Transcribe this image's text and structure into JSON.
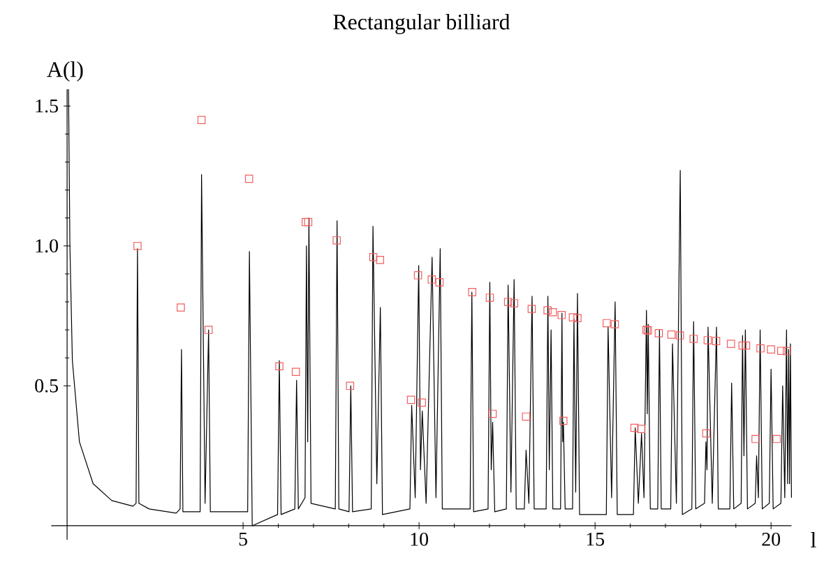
{
  "chart_data": {
    "type": "line",
    "title": "Rectangular billiard",
    "xlabel": "l",
    "ylabel": "A(l)",
    "xlim": [
      -0.45,
      20.58
    ],
    "ylim": [
      -0.05,
      1.56
    ],
    "xticks": [
      5,
      10,
      15,
      20
    ],
    "yticks": [
      {
        "value": 0.5,
        "label": "0.5"
      },
      {
        "value": 1.0,
        "label": "1.0"
      },
      {
        "value": 1.5,
        "label": "1.5"
      }
    ],
    "grid": false,
    "series": [
      {
        "color": "#000000",
        "marker": "none",
        "line_style": "solid",
        "x": [
          0.04,
          0.08,
          0.15,
          0.35,
          0.74,
          1.27,
          1.87,
          1.96,
          2.0,
          2.04,
          2.33,
          3.1,
          3.21,
          3.25,
          3.29,
          3.78,
          3.82,
          3.92,
          4.02,
          4.07,
          5.13,
          5.18,
          5.26,
          5.98,
          6.03,
          6.08,
          6.47,
          6.52,
          6.57,
          6.76,
          6.8,
          6.835,
          6.87,
          6.93,
          7.62,
          7.67,
          7.72,
          8.01,
          8.06,
          8.11,
          8.64,
          8.69,
          8.8,
          8.9,
          8.96,
          9.74,
          9.79,
          9.89,
          9.99,
          10.04,
          10.09,
          10.2,
          10.37,
          10.48,
          10.6,
          10.66,
          11.45,
          11.5,
          11.55,
          11.96,
          12.01,
          12.05,
          12.09,
          12.15,
          12.48,
          12.53,
          12.61,
          12.7,
          12.76,
          12.99,
          13.04,
          13.12,
          13.21,
          13.27,
          13.61,
          13.66,
          13.7,
          13.75,
          13.8,
          14.02,
          14.06,
          14.08,
          14.1,
          14.15,
          14.36,
          14.4,
          14.45,
          14.5,
          14.56,
          15.32,
          15.37,
          15.47,
          15.57,
          15.63,
          16.09,
          16.14,
          16.23,
          16.32,
          16.39,
          16.46,
          16.485,
          16.51,
          16.57,
          16.78,
          16.83,
          16.88,
          17.15,
          17.2,
          17.31,
          17.42,
          17.48,
          17.75,
          17.8,
          17.86,
          18.11,
          18.15,
          18.18,
          18.21,
          18.33,
          18.45,
          18.5,
          18.83,
          18.88,
          18.94,
          19.15,
          19.19,
          19.23,
          19.27,
          19.33,
          19.55,
          19.59,
          19.64,
          19.69,
          19.75,
          19.95,
          20.0,
          20.06,
          20.28,
          20.33,
          20.39,
          20.44,
          20.47,
          20.5,
          20.525,
          20.55,
          20.58
        ],
        "values": [
          1.56,
          1.0,
          0.59,
          0.3,
          0.15,
          0.09,
          0.07,
          0.08,
          0.99,
          0.08,
          0.06,
          0.045,
          0.06,
          0.63,
          0.05,
          0.05,
          1.255,
          0.08,
          0.7,
          0.05,
          0.05,
          0.98,
          0.0,
          0.04,
          0.59,
          0.04,
          0.06,
          0.52,
          0.06,
          0.1,
          1.0,
          0.3,
          1.1,
          0.08,
          0.06,
          1.09,
          0.06,
          0.05,
          0.5,
          0.05,
          0.06,
          1.07,
          0.15,
          0.78,
          0.04,
          0.06,
          0.43,
          0.1,
          0.93,
          0.2,
          0.41,
          0.08,
          0.96,
          0.1,
          0.99,
          0.06,
          0.06,
          0.835,
          0.05,
          0.06,
          0.87,
          0.2,
          0.37,
          0.05,
          0.06,
          0.86,
          0.12,
          0.88,
          0.06,
          0.06,
          0.27,
          0.08,
          0.82,
          0.06,
          0.06,
          0.82,
          0.2,
          0.7,
          0.06,
          0.06,
          0.76,
          0.3,
          0.37,
          0.06,
          0.06,
          0.74,
          0.12,
          0.83,
          0.04,
          0.04,
          0.71,
          0.1,
          0.8,
          0.04,
          0.04,
          0.35,
          0.08,
          0.33,
          0.1,
          0.77,
          0.4,
          0.72,
          0.06,
          0.06,
          0.7,
          0.06,
          0.06,
          0.65,
          0.08,
          1.27,
          0.04,
          0.06,
          0.73,
          0.06,
          0.08,
          0.3,
          0.2,
          0.71,
          0.08,
          0.71,
          0.06,
          0.06,
          0.51,
          0.06,
          0.08,
          0.68,
          0.25,
          0.7,
          0.06,
          0.08,
          0.25,
          0.1,
          0.7,
          0.06,
          0.08,
          0.56,
          0.06,
          0.08,
          0.5,
          0.1,
          0.7,
          0.15,
          0.63,
          0.15,
          0.65,
          0.1
        ]
      },
      {
        "type": "scatter",
        "color": "#f25f5f",
        "marker": "square",
        "x": [
          2.0,
          3.23,
          3.82,
          4.02,
          5.17,
          6.03,
          6.5,
          6.78,
          6.85,
          7.66,
          8.04,
          8.7,
          8.89,
          9.77,
          9.97,
          10.08,
          10.36,
          10.58,
          11.51,
          12.01,
          12.09,
          12.53,
          12.7,
          13.04,
          13.2,
          13.65,
          13.8,
          14.05,
          14.1,
          14.37,
          14.5,
          15.33,
          15.56,
          16.12,
          16.31,
          16.46,
          16.5,
          16.81,
          17.17,
          17.41,
          17.8,
          18.16,
          18.2,
          18.44,
          18.86,
          19.19,
          19.29,
          19.56,
          19.7,
          20.0,
          20.16,
          20.29,
          20.45
        ],
        "values": [
          1.0,
          0.78,
          1.45,
          0.7,
          1.24,
          0.57,
          0.55,
          1.085,
          1.085,
          1.02,
          0.5,
          0.96,
          0.95,
          0.45,
          0.895,
          0.44,
          0.88,
          0.87,
          0.835,
          0.815,
          0.4,
          0.8,
          0.795,
          0.39,
          0.775,
          0.77,
          0.763,
          0.753,
          0.375,
          0.745,
          0.742,
          0.724,
          0.72,
          0.35,
          0.346,
          0.7,
          0.698,
          0.688,
          0.683,
          0.68,
          0.668,
          0.33,
          0.663,
          0.66,
          0.65,
          0.644,
          0.644,
          0.31,
          0.634,
          0.63,
          0.31,
          0.625,
          0.624
        ]
      }
    ]
  }
}
